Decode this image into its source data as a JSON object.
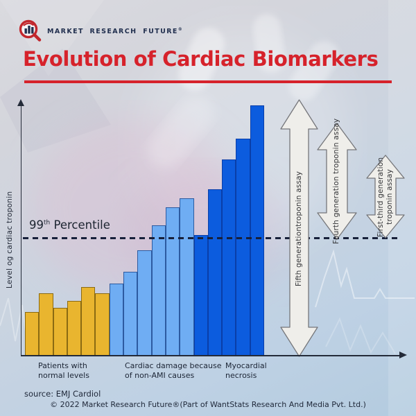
{
  "logo": {
    "brand": "MARKET RESEARCH FUTURE",
    "registered_mark": "®"
  },
  "header": {
    "title": "Evolution of Cardiac Biomarkers"
  },
  "chart_data": {
    "type": "bar",
    "title": "Evolution of Cardiac Biomarkers",
    "xlabel": "",
    "ylabel": "Level og cardiac troponin",
    "units": "relative level (no numeric scale shown)",
    "ylim": [
      0,
      380
    ],
    "grid": false,
    "threshold": {
      "value_text": "99",
      "sup": "th",
      "label": "Percentile",
      "y": 169
    },
    "categories": [
      "Patients with normal levels",
      "Cardiac damage because of non-AMI causes",
      "Myocardial necrosis"
    ],
    "category_labels": [
      "Patients with\nnormal levels",
      "Cardiac damage because\nof non-AMI causes",
      "Myocardial\nnecrosis"
    ],
    "series": [
      {
        "name": "Patients with normal levels",
        "color": "#E9B52F",
        "border": "#8A6A12",
        "values": [
          63,
          90,
          69,
          79,
          99,
          90
        ]
      },
      {
        "name": "Cardiac damage because of non-AMI causes",
        "color": "#6FADF3",
        "border": "#2C5AA0",
        "values": [
          104,
          121,
          152,
          188,
          214,
          227
        ]
      },
      {
        "name": "Myocardial necrosis",
        "color": "#0C5CDE",
        "border": "#0A3EA8",
        "values": [
          174,
          240,
          283,
          313,
          361
        ]
      }
    ],
    "annotations": [
      {
        "label": "Fifth generationtroponin assay"
      },
      {
        "label": "Fourth generation troponin assay"
      },
      {
        "label": "First-third generation troponin assay"
      }
    ],
    "legend_position": "none"
  },
  "footer": {
    "source": "source: EMJ Cardiol",
    "copyright": "© 2022 Market Research Future®(Part of WantStats Research And Media Pvt. Ltd.)"
  }
}
